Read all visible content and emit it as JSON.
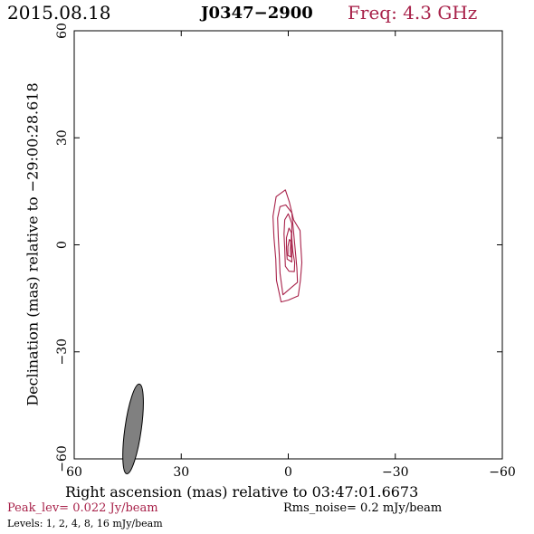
{
  "header": {
    "date": "2015.08.18",
    "source": "J0347−2900",
    "frequency": "Freq: 4.3 GHz"
  },
  "footer": {
    "peak": "Peak_lev=  0.022 Jy/beam",
    "rms": "Rms_noise=  0.2 mJy/beam",
    "levels": "Levels:  1,  2,  4,  8,  16 mJy/beam"
  },
  "chart_data": {
    "type": "contour",
    "xlabel": "Right ascension (mas) relative to 03:47:01.6673",
    "ylabel": "Declination (mas) relative to −29:00:28.618",
    "xlim": [
      60,
      -60
    ],
    "ylim": [
      -60,
      60
    ],
    "x_ticks": [
      60,
      30,
      0,
      -30,
      -60
    ],
    "y_ticks": [
      -60,
      -30,
      0,
      30,
      60
    ],
    "x_tick_labels": [
      "60",
      "30",
      "0",
      "−30",
      "−60"
    ],
    "y_tick_labels": [
      "−60",
      "−30",
      "0",
      "30",
      "60"
    ],
    "contour_color": "#a8224a",
    "beam_color": "#808080",
    "contour_levels_mJy": [
      1,
      2,
      4,
      8,
      16
    ],
    "contours": [
      [
        [
          2.0,
          -16.0
        ],
        [
          3.3,
          -10.0
        ],
        [
          3.5,
          -4.0
        ],
        [
          4.0,
          2.0
        ],
        [
          4.3,
          8.0
        ],
        [
          3.4,
          13.5
        ],
        [
          0.8,
          15.4
        ],
        [
          -0.3,
          12.0
        ],
        [
          -1.5,
          7.0
        ],
        [
          -3.3,
          4.0
        ],
        [
          -3.5,
          0.0
        ],
        [
          -3.8,
          -5.0
        ],
        [
          -3.4,
          -10.0
        ],
        [
          -2.8,
          -14.3
        ],
        [
          0.0,
          -15.5
        ]
      ],
      [
        [
          1.5,
          -14.0
        ],
        [
          2.3,
          -8.0
        ],
        [
          2.5,
          -3.0
        ],
        [
          2.8,
          2.0
        ],
        [
          3.0,
          7.5
        ],
        [
          2.3,
          10.7
        ],
        [
          0.7,
          11.2
        ],
        [
          -1.0,
          9.0
        ],
        [
          -1.5,
          3.5
        ],
        [
          -2.0,
          -2.0
        ],
        [
          -2.4,
          -6.5
        ],
        [
          -2.6,
          -10.5
        ],
        [
          -0.8,
          -12.0
        ]
      ],
      [
        [
          0.8,
          -6.0
        ],
        [
          1.0,
          -1.0
        ],
        [
          1.2,
          3.0
        ],
        [
          1.0,
          7.0
        ],
        [
          0.0,
          8.7
        ],
        [
          -1.0,
          6.0
        ],
        [
          -1.0,
          2.0
        ],
        [
          -1.3,
          -2.0
        ],
        [
          -1.8,
          -5.0
        ],
        [
          -1.7,
          -7.5
        ],
        [
          -0.2,
          -7.4
        ]
      ],
      [
        [
          0.3,
          -4.0
        ],
        [
          0.5,
          -1.0
        ],
        [
          0.5,
          2.0
        ],
        [
          -0.2,
          4.7
        ],
        [
          -0.9,
          3.4
        ],
        [
          -0.8,
          0.5
        ],
        [
          -1.0,
          -2.0
        ],
        [
          -1.0,
          -4.8
        ]
      ],
      [
        [
          0.1,
          -3.0
        ],
        [
          0.1,
          -0.5
        ],
        [
          -0.3,
          1.5
        ],
        [
          -0.7,
          1.0
        ],
        [
          -0.6,
          -1.5
        ],
        [
          -0.7,
          -3.4
        ]
      ]
    ],
    "beam": {
      "x": 43.5,
      "y": -51.6,
      "major_axis": 12.7,
      "minor_axis": 2.3,
      "position_angle_deg": 8
    }
  }
}
